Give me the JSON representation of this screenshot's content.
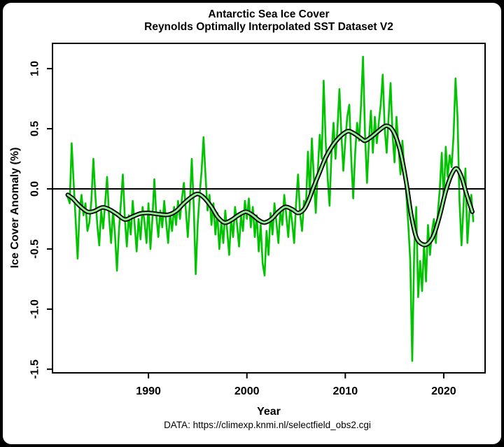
{
  "chart_data": {
    "type": "line",
    "title": "Antarctic Sea Ice Cover",
    "subtitle": "Reynolds Optimally Interpolated SST Dataset V2",
    "xlabel": "Year",
    "ylabel": "Ice Cover Anomaly (%)",
    "annotation": "DATA: https://climexp.knmi.nl/selectfield_obs2.cgi",
    "xlim": [
      1980.25,
      2024.2
    ],
    "ylim": [
      -1.53,
      1.21
    ],
    "x_ticks": [
      1990,
      2000,
      2010,
      2020
    ],
    "x_tick_labels": [
      "1990",
      "2000",
      "2010",
      "2020"
    ],
    "y_ticks": [
      -1.5,
      -1.0,
      -0.5,
      0.0,
      0.5,
      1.0
    ],
    "y_tick_labels": [
      "-1.5",
      "-1.0",
      "-0.5",
      "0.0",
      "0.5",
      "1.0"
    ],
    "grid": false,
    "legend": "none",
    "zero_line": 0.0,
    "colors": {
      "monthly_line": "#00c400",
      "smooth_outline": "#000000",
      "smooth_core": "#90ee90",
      "axis": "#000000",
      "background": "#ffffff"
    },
    "series": [
      {
        "name": "monthly_anomaly",
        "style": "noisy",
        "points": [
          [
            1981.8,
            -0.07
          ],
          [
            1982.0,
            -0.12
          ],
          [
            1982.2,
            0.38
          ],
          [
            1982.4,
            0.05
          ],
          [
            1982.6,
            -0.25
          ],
          [
            1982.8,
            -0.58
          ],
          [
            1983.0,
            -0.18
          ],
          [
            1983.2,
            -0.05
          ],
          [
            1983.4,
            -0.22
          ],
          [
            1983.6,
            -0.12
          ],
          [
            1983.8,
            -0.35
          ],
          [
            1984.0,
            -0.28
          ],
          [
            1984.2,
            -0.1
          ],
          [
            1984.4,
            0.25
          ],
          [
            1984.6,
            -0.05
          ],
          [
            1984.8,
            -0.3
          ],
          [
            1985.0,
            -0.47
          ],
          [
            1985.2,
            -0.18
          ],
          [
            1985.4,
            -0.33
          ],
          [
            1985.6,
            -0.12
          ],
          [
            1985.8,
            0.1
          ],
          [
            1986.0,
            -0.24
          ],
          [
            1986.2,
            -0.45
          ],
          [
            1986.4,
            -0.18
          ],
          [
            1986.6,
            -0.38
          ],
          [
            1986.8,
            -0.68
          ],
          [
            1987.0,
            -0.35
          ],
          [
            1987.2,
            -0.12
          ],
          [
            1987.4,
            0.12
          ],
          [
            1987.6,
            -0.25
          ],
          [
            1987.8,
            -0.48
          ],
          [
            1988.0,
            -0.22
          ],
          [
            1988.2,
            -0.38
          ],
          [
            1988.4,
            -0.1
          ],
          [
            1988.6,
            -0.3
          ],
          [
            1988.8,
            -0.52
          ],
          [
            1989.0,
            -0.25
          ],
          [
            1989.2,
            -0.42
          ],
          [
            1989.4,
            -0.15
          ],
          [
            1989.6,
            -0.28
          ],
          [
            1989.8,
            -0.45
          ],
          [
            1990.0,
            -0.12
          ],
          [
            1990.2,
            -0.5
          ],
          [
            1990.4,
            -0.25
          ],
          [
            1990.6,
            0.08
          ],
          [
            1990.8,
            -0.22
          ],
          [
            1991.0,
            -0.4
          ],
          [
            1991.2,
            -0.18
          ],
          [
            1991.4,
            -0.32
          ],
          [
            1991.6,
            -0.1
          ],
          [
            1991.8,
            -0.28
          ],
          [
            1992.0,
            -0.45
          ],
          [
            1992.2,
            -0.2
          ],
          [
            1992.4,
            -0.35
          ],
          [
            1992.6,
            -0.15
          ],
          [
            1992.8,
            -0.3
          ],
          [
            1993.0,
            -0.1
          ],
          [
            1993.2,
            -0.25
          ],
          [
            1993.4,
            -0.08
          ],
          [
            1993.6,
            0.05
          ],
          [
            1993.8,
            -0.18
          ],
          [
            1994.0,
            -0.4
          ],
          [
            1994.2,
            -0.12
          ],
          [
            1994.4,
            0.25
          ],
          [
            1994.6,
            -0.15
          ],
          [
            1994.8,
            -0.71
          ],
          [
            1995.0,
            -0.3
          ],
          [
            1995.2,
            -0.05
          ],
          [
            1995.4,
            0.15
          ],
          [
            1995.6,
            0.43
          ],
          [
            1995.8,
            0.1
          ],
          [
            1996.0,
            -0.18
          ],
          [
            1996.2,
            -0.05
          ],
          [
            1996.4,
            -0.3
          ],
          [
            1996.6,
            -0.12
          ],
          [
            1996.8,
            -0.38
          ],
          [
            1997.0,
            -0.2
          ],
          [
            1997.2,
            -0.5
          ],
          [
            1997.4,
            -0.28
          ],
          [
            1997.6,
            -0.45
          ],
          [
            1997.8,
            -0.18
          ],
          [
            1998.0,
            -0.35
          ],
          [
            1998.2,
            -0.55
          ],
          [
            1998.4,
            -0.25
          ],
          [
            1998.6,
            -0.4
          ],
          [
            1998.8,
            -0.15
          ],
          [
            1999.0,
            -0.3
          ],
          [
            1999.2,
            -0.48
          ],
          [
            1999.4,
            -0.22
          ],
          [
            1999.6,
            -0.35
          ],
          [
            1999.8,
            -0.1
          ],
          [
            2000.0,
            -0.25
          ],
          [
            2000.2,
            -0.08
          ],
          [
            2000.4,
            -0.32
          ],
          [
            2000.6,
            -0.15
          ],
          [
            2000.8,
            -0.4
          ],
          [
            2001.0,
            -0.22
          ],
          [
            2001.2,
            -0.52
          ],
          [
            2001.4,
            -0.3
          ],
          [
            2001.6,
            -0.62
          ],
          [
            2001.8,
            -0.72
          ],
          [
            2002.0,
            -0.35
          ],
          [
            2002.2,
            -0.55
          ],
          [
            2002.4,
            -0.2
          ],
          [
            2002.6,
            -0.38
          ],
          [
            2002.8,
            -0.12
          ],
          [
            2003.0,
            -0.28
          ],
          [
            2003.2,
            -0.45
          ],
          [
            2003.4,
            -0.18
          ],
          [
            2003.6,
            -0.3
          ],
          [
            2003.8,
            -0.05
          ],
          [
            2004.0,
            -0.22
          ],
          [
            2004.2,
            -0.4
          ],
          [
            2004.4,
            -0.15
          ],
          [
            2004.6,
            -0.28
          ],
          [
            2004.8,
            -0.45
          ],
          [
            2005.0,
            -0.12
          ],
          [
            2005.2,
            0.12
          ],
          [
            2005.4,
            -0.2
          ],
          [
            2005.6,
            -0.35
          ],
          [
            2005.8,
            -0.1
          ],
          [
            2006.0,
            -0.15
          ],
          [
            2006.2,
            0.31
          ],
          [
            2006.4,
            -0.05
          ],
          [
            2006.6,
            0.42
          ],
          [
            2006.8,
            0.1
          ],
          [
            2007.0,
            -0.2
          ],
          [
            2007.2,
            0.15
          ],
          [
            2007.4,
            0.45
          ],
          [
            2007.6,
            0.25
          ],
          [
            2007.8,
            0.9
          ],
          [
            2008.0,
            0.4
          ],
          [
            2008.2,
            0.1
          ],
          [
            2008.4,
            -0.14
          ],
          [
            2008.6,
            0.3
          ],
          [
            2008.8,
            0.55
          ],
          [
            2009.0,
            0.25
          ],
          [
            2009.2,
            0.5
          ],
          [
            2009.4,
            0.83
          ],
          [
            2009.6,
            0.45
          ],
          [
            2009.8,
            0.15
          ],
          [
            2010.0,
            0.4
          ],
          [
            2010.2,
            0.6
          ],
          [
            2010.4,
            0.7
          ],
          [
            2010.6,
            0.25
          ],
          [
            2010.8,
            -0.08
          ],
          [
            2011.0,
            0.3
          ],
          [
            2011.2,
            0.55
          ],
          [
            2011.4,
            0.4
          ],
          [
            2011.6,
            0.7
          ],
          [
            2011.8,
            1.1
          ],
          [
            2012.0,
            0.45
          ],
          [
            2012.2,
            0.05
          ],
          [
            2012.4,
            0.4
          ],
          [
            2012.6,
            0.65
          ],
          [
            2012.8,
            0.3
          ],
          [
            2013.0,
            0.6
          ],
          [
            2013.2,
            0.38
          ],
          [
            2013.4,
            0.55
          ],
          [
            2013.6,
            0.7
          ],
          [
            2013.8,
            0.95
          ],
          [
            2014.0,
            0.5
          ],
          [
            2014.2,
            0.3
          ],
          [
            2014.4,
            0.6
          ],
          [
            2014.6,
            0.88
          ],
          [
            2014.8,
            0.45
          ],
          [
            2015.0,
            0.22
          ],
          [
            2015.2,
            0.6
          ],
          [
            2015.4,
            0.35
          ],
          [
            2015.6,
            0.12
          ],
          [
            2015.8,
            0.4
          ],
          [
            2016.0,
            0.15
          ],
          [
            2016.2,
            -0.05
          ],
          [
            2016.4,
            -0.3
          ],
          [
            2016.6,
            -0.6
          ],
          [
            2016.8,
            -1.43
          ],
          [
            2017.0,
            -0.5
          ],
          [
            2017.2,
            -0.15
          ],
          [
            2017.4,
            -0.9
          ],
          [
            2017.6,
            -0.6
          ],
          [
            2017.8,
            -0.85
          ],
          [
            2018.0,
            -0.45
          ],
          [
            2018.2,
            -0.77
          ],
          [
            2018.4,
            -0.3
          ],
          [
            2018.6,
            -0.55
          ],
          [
            2018.8,
            -0.35
          ],
          [
            2019.0,
            -0.25
          ],
          [
            2019.2,
            -0.45
          ],
          [
            2019.4,
            -0.2
          ],
          [
            2019.6,
            0.0
          ],
          [
            2019.8,
            0.3
          ],
          [
            2020.0,
            -0.1
          ],
          [
            2020.2,
            0.35
          ],
          [
            2020.4,
            0.1
          ],
          [
            2020.6,
            0.28
          ],
          [
            2020.8,
            0.18
          ],
          [
            2021.0,
            0.45
          ],
          [
            2021.2,
            0.92
          ],
          [
            2021.4,
            0.6
          ],
          [
            2021.6,
            -0.1
          ],
          [
            2021.8,
            -0.47
          ],
          [
            2022.0,
            -0.15
          ],
          [
            2022.2,
            0.17
          ],
          [
            2022.4,
            -0.45
          ],
          [
            2022.6,
            -0.2
          ],
          [
            2022.8,
            -0.05
          ],
          [
            2023.0,
            -0.27
          ]
        ]
      },
      {
        "name": "loess_smooth",
        "style": "outlined",
        "points": [
          [
            1981.8,
            -0.05
          ],
          [
            1982.3,
            -0.08
          ],
          [
            1983.0,
            -0.14
          ],
          [
            1983.8,
            -0.19
          ],
          [
            1984.5,
            -0.185
          ],
          [
            1985.3,
            -0.155
          ],
          [
            1986.0,
            -0.17
          ],
          [
            1986.8,
            -0.21
          ],
          [
            1987.6,
            -0.255
          ],
          [
            1988.4,
            -0.23
          ],
          [
            1989.2,
            -0.205
          ],
          [
            1990.0,
            -0.2
          ],
          [
            1991.0,
            -0.21
          ],
          [
            1992.0,
            -0.215
          ],
          [
            1992.8,
            -0.185
          ],
          [
            1993.6,
            -0.12
          ],
          [
            1994.4,
            -0.065
          ],
          [
            1995.0,
            -0.042
          ],
          [
            1995.6,
            -0.07
          ],
          [
            1996.4,
            -0.15
          ],
          [
            1997.0,
            -0.23
          ],
          [
            1997.7,
            -0.28
          ],
          [
            1998.4,
            -0.26
          ],
          [
            1999.2,
            -0.215
          ],
          [
            1999.9,
            -0.19
          ],
          [
            2000.6,
            -0.22
          ],
          [
            2001.2,
            -0.26
          ],
          [
            2001.8,
            -0.28
          ],
          [
            2002.5,
            -0.25
          ],
          [
            2003.2,
            -0.19
          ],
          [
            2003.9,
            -0.15
          ],
          [
            2004.6,
            -0.17
          ],
          [
            2005.2,
            -0.2
          ],
          [
            2005.8,
            -0.17
          ],
          [
            2006.3,
            -0.09
          ],
          [
            2006.8,
            0.02
          ],
          [
            2007.4,
            0.14
          ],
          [
            2008.0,
            0.26
          ],
          [
            2008.7,
            0.36
          ],
          [
            2009.4,
            0.43
          ],
          [
            2010.0,
            0.47
          ],
          [
            2010.4,
            0.48
          ],
          [
            2011.0,
            0.455
          ],
          [
            2011.6,
            0.42
          ],
          [
            2012.0,
            0.4
          ],
          [
            2012.6,
            0.43
          ],
          [
            2013.2,
            0.47
          ],
          [
            2013.8,
            0.51
          ],
          [
            2014.2,
            0.525
          ],
          [
            2014.7,
            0.5
          ],
          [
            2015.2,
            0.42
          ],
          [
            2015.7,
            0.27
          ],
          [
            2016.2,
            0.05
          ],
          [
            2016.7,
            -0.22
          ],
          [
            2017.2,
            -0.4
          ],
          [
            2017.8,
            -0.46
          ],
          [
            2018.4,
            -0.455
          ],
          [
            2019.0,
            -0.38
          ],
          [
            2019.6,
            -0.22
          ],
          [
            2020.2,
            -0.02
          ],
          [
            2020.8,
            0.12
          ],
          [
            2021.3,
            0.17
          ],
          [
            2021.8,
            0.1
          ],
          [
            2022.3,
            -0.04
          ],
          [
            2022.9,
            -0.19
          ]
        ]
      }
    ]
  }
}
